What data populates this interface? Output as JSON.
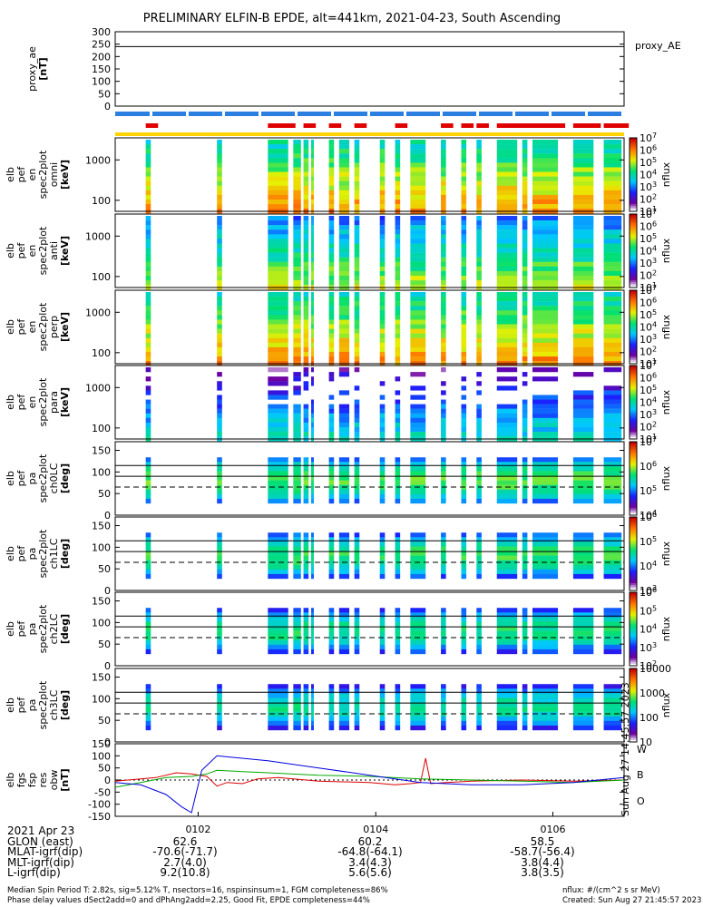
{
  "title": "PRELIMINARY ELFIN-B EPDE, alt=441km, 2021-04-23, South Ascending",
  "chart_data": {
    "type": "heatmap",
    "time_range": [
      "01:00:30",
      "01:07:20"
    ],
    "panels": [
      {
        "id": "proxy_ae",
        "ylabel": [
          "proxy_ae",
          "[nT]"
        ],
        "yticks": [
          "300",
          "250",
          "200",
          "150",
          "100",
          "50",
          "0"
        ],
        "legend": "proxy_AE",
        "kind": "line",
        "series": [
          {
            "name": "proxy_AE",
            "color": "#000000",
            "values": [
              240,
              240,
              240,
              240,
              240
            ]
          }
        ]
      },
      {
        "id": "en_omni",
        "ylabel": [
          "elb",
          "pef",
          "en",
          "spec2plot",
          "omni",
          "[keV]"
        ],
        "yticks": [
          "1000",
          "100"
        ],
        "clabel": "nflux",
        "cticks": [
          "10^7",
          "10^6",
          "10^5",
          "10^4",
          "10^3",
          "10^2",
          "10^1"
        ],
        "kind": "spec"
      },
      {
        "id": "en_anti",
        "ylabel": [
          "elb",
          "pef",
          "en",
          "spec2plot",
          "anti",
          "[keV]"
        ],
        "yticks": [
          "1000",
          "100"
        ],
        "clabel": "nflux",
        "cticks": [
          "10^7",
          "10^6",
          "10^5",
          "10^4",
          "10^3",
          "10^2",
          "10^1"
        ],
        "kind": "spec"
      },
      {
        "id": "en_perp",
        "ylabel": [
          "elb",
          "pef",
          "en",
          "spec2plot",
          "perp",
          "[keV]"
        ],
        "yticks": [
          "1000",
          "100"
        ],
        "clabel": "nflux",
        "cticks": [
          "10^7",
          "10^6",
          "10^5",
          "10^4",
          "10^3",
          "10^2",
          "10^1"
        ],
        "kind": "spec"
      },
      {
        "id": "en_para",
        "ylabel": [
          "elb",
          "pef",
          "en",
          "spec2plot",
          "para",
          "[keV]"
        ],
        "yticks": [
          "1000",
          "100"
        ],
        "clabel": "nflux",
        "cticks": [
          "10^7",
          "10^6",
          "10^5",
          "10^4",
          "10^3",
          "10^2",
          "10^1"
        ],
        "kind": "spec"
      },
      {
        "id": "pa_ch0",
        "ylabel": [
          "elb",
          "pef",
          "pa",
          "spec2plot",
          "ch0LC",
          "[deg]"
        ],
        "yticks": [
          "150",
          "100",
          "50",
          "0"
        ],
        "clabel": "nflux",
        "cticks": [
          "10^7",
          "10^6",
          "10^5",
          "10^4"
        ],
        "kind": "spec"
      },
      {
        "id": "pa_ch1",
        "ylabel": [
          "elb",
          "pef",
          "pa",
          "spec2plot",
          "ch1LC",
          "[deg]"
        ],
        "yticks": [
          "150",
          "100",
          "50",
          "0"
        ],
        "clabel": "nflux",
        "cticks": [
          "10^6",
          "10^5",
          "10^4",
          "10^3"
        ],
        "kind": "spec"
      },
      {
        "id": "pa_ch2",
        "ylabel": [
          "elb",
          "pef",
          "pa",
          "spec2plot",
          "ch2LC",
          "[deg]"
        ],
        "yticks": [
          "150",
          "100",
          "50",
          "0"
        ],
        "clabel": "nflux",
        "cticks": [
          "10^6",
          "10^5",
          "10^4",
          "10^3",
          "10^2"
        ],
        "kind": "spec"
      },
      {
        "id": "pa_ch3",
        "ylabel": [
          "elb",
          "pef",
          "pa",
          "spec2plot",
          "ch3LC",
          "[deg]"
        ],
        "yticks": [
          "150",
          "100",
          "50",
          "0"
        ],
        "clabel": "nflux",
        "cticks": [
          "10000",
          "1000",
          "100",
          "10"
        ],
        "kind": "spec"
      },
      {
        "id": "fgs",
        "ylabel": [
          "elb",
          "fgs",
          "fsp",
          "res",
          "obw",
          "[nT]"
        ],
        "yticks": [
          "150",
          "100",
          "50",
          "0",
          "-50",
          "-100",
          "-150"
        ],
        "legend_labels": [
          "W",
          "B",
          "O"
        ],
        "kind": "line",
        "series": [
          {
            "name": "W",
            "color": "#dd0000",
            "x": [
              0,
              0.08,
              0.12,
              0.15,
              0.18,
              0.2,
              0.22,
              0.25,
              0.28,
              0.32,
              0.4,
              0.5,
              0.55,
              0.58,
              0.6,
              0.61,
              0.62,
              0.65,
              0.7,
              0.8,
              0.9,
              1.0
            ],
            "values": [
              -5,
              10,
              30,
              25,
              15,
              -25,
              -10,
              -15,
              5,
              10,
              -5,
              -10,
              -20,
              -15,
              -10,
              90,
              -15,
              -10,
              -5,
              0,
              -5,
              0
            ]
          },
          {
            "name": "B",
            "color": "#00aa00",
            "x": [
              0,
              0.05,
              0.1,
              0.15,
              0.18,
              0.2,
              0.25,
              0.3,
              0.4,
              0.5,
              0.6,
              0.7,
              0.8,
              0.9,
              1.0
            ],
            "values": [
              -30,
              -10,
              10,
              15,
              25,
              40,
              35,
              30,
              20,
              15,
              5,
              0,
              -5,
              -10,
              0
            ]
          },
          {
            "name": "O",
            "color": "#0000dd",
            "x": [
              0,
              0.05,
              0.1,
              0.13,
              0.15,
              0.17,
              0.2,
              0.3,
              0.4,
              0.5,
              0.6,
              0.7,
              0.8,
              0.9,
              1.0
            ],
            "values": [
              -10,
              -20,
              -60,
              -110,
              -135,
              40,
              100,
              80,
              50,
              20,
              -10,
              -20,
              -20,
              -10,
              10
            ]
          }
        ]
      }
    ],
    "spectrogram_segments": [
      [
        0.06,
        0.07
      ],
      [
        0.2,
        0.21
      ],
      [
        0.3,
        0.34
      ],
      [
        0.35,
        0.365
      ],
      [
        0.37,
        0.38
      ],
      [
        0.385,
        0.39
      ],
      [
        0.42,
        0.43
      ],
      [
        0.44,
        0.46
      ],
      [
        0.47,
        0.48
      ],
      [
        0.52,
        0.53
      ],
      [
        0.55,
        0.56
      ],
      [
        0.58,
        0.61
      ],
      [
        0.64,
        0.65
      ],
      [
        0.68,
        0.69
      ],
      [
        0.71,
        0.72
      ],
      [
        0.75,
        0.79
      ],
      [
        0.8,
        0.81
      ],
      [
        0.82,
        0.87
      ],
      [
        0.9,
        0.94
      ],
      [
        0.96,
        0.995
      ]
    ],
    "pa_reference_lines": [
      115,
      90,
      65
    ],
    "time_ticks": [
      "0102",
      "0104",
      "0106"
    ],
    "orbit_table": {
      "rows": [
        {
          "label": "2021 Apr 23",
          "values": [
            "",
            "",
            ""
          ]
        },
        {
          "label": "GLON (east)",
          "values": [
            "62.6",
            "60.2",
            "58.5"
          ]
        },
        {
          "label": "MLAT-igrf(dip)",
          "values": [
            "-70.6(-71.7)",
            "-64.8(-64.1)",
            "-58.7(-56.4)"
          ]
        },
        {
          "label": "MLT-igrf(dip)",
          "values": [
            "2.7(4.0)",
            "3.4(4.3)",
            "3.8(4.4)"
          ]
        },
        {
          "label": "L-igrf(dip)",
          "values": [
            "9.2(10.8)",
            "5.6(5.6)",
            "3.8(3.5)"
          ]
        }
      ]
    }
  },
  "footer": {
    "line1": "Median Spin Period T: 2.82s, sig=5.12% T, nsectors=16, nspinsinsum=1, FGM completeness=86%",
    "line2": "Phase delay values dSect2add=0 and dPhAng2add=2.25, Good Fit, EPDE completeness=44%",
    "right1": "nflux: #/(cm^2 s sr MeV)",
    "right2": "Created: Sun Aug 27 21:45:57 2023",
    "vertical_stamp": "Sun Aug 27 14:45:57 2023"
  }
}
